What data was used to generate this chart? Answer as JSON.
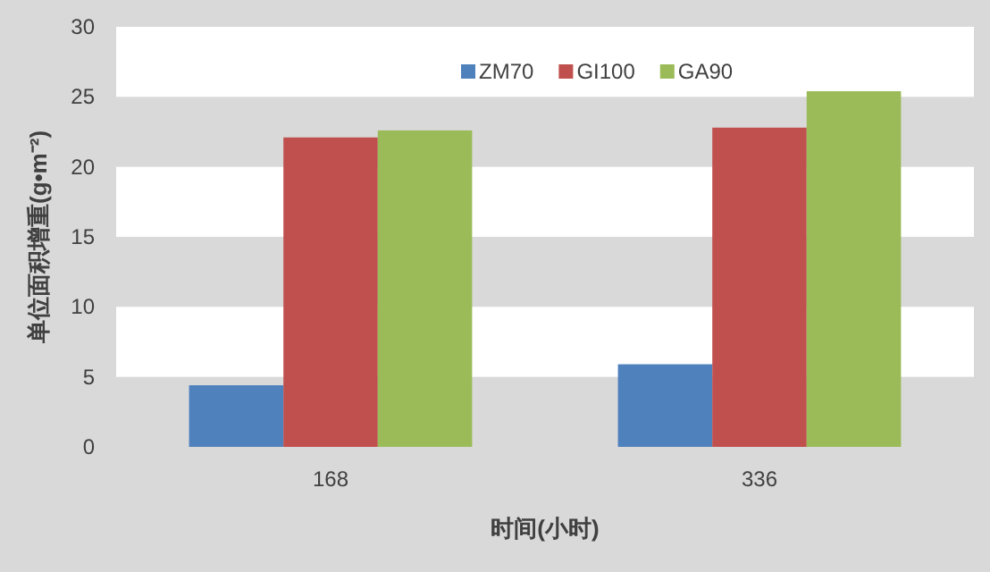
{
  "chart_data": {
    "type": "bar",
    "xlabel": "时间(小时)",
    "ylabel": "单位面积增重(g•m⁻²)",
    "categories": [
      "168",
      "336"
    ],
    "series": [
      {
        "name": "ZM70",
        "color": "#4f81bd",
        "values": [
          4.4,
          5.9
        ]
      },
      {
        "name": "GI100",
        "color": "#c0504d",
        "values": [
          22.1,
          22.8
        ]
      },
      {
        "name": "GA90",
        "color": "#9bbb59",
        "values": [
          22.6,
          25.4
        ]
      }
    ],
    "ylim": [
      0,
      30
    ],
    "yticks": [
      0,
      5,
      10,
      15,
      20,
      25,
      30
    ],
    "bands": [
      {
        "axis": "y",
        "from": 5,
        "to": 10,
        "color": "#ffffff"
      },
      {
        "axis": "y",
        "from": 15,
        "to": 20,
        "color": "#ffffff"
      },
      {
        "axis": "y",
        "from": 25,
        "to": 30,
        "color": "#ffffff"
      }
    ],
    "legend": "top right",
    "grid": false
  }
}
